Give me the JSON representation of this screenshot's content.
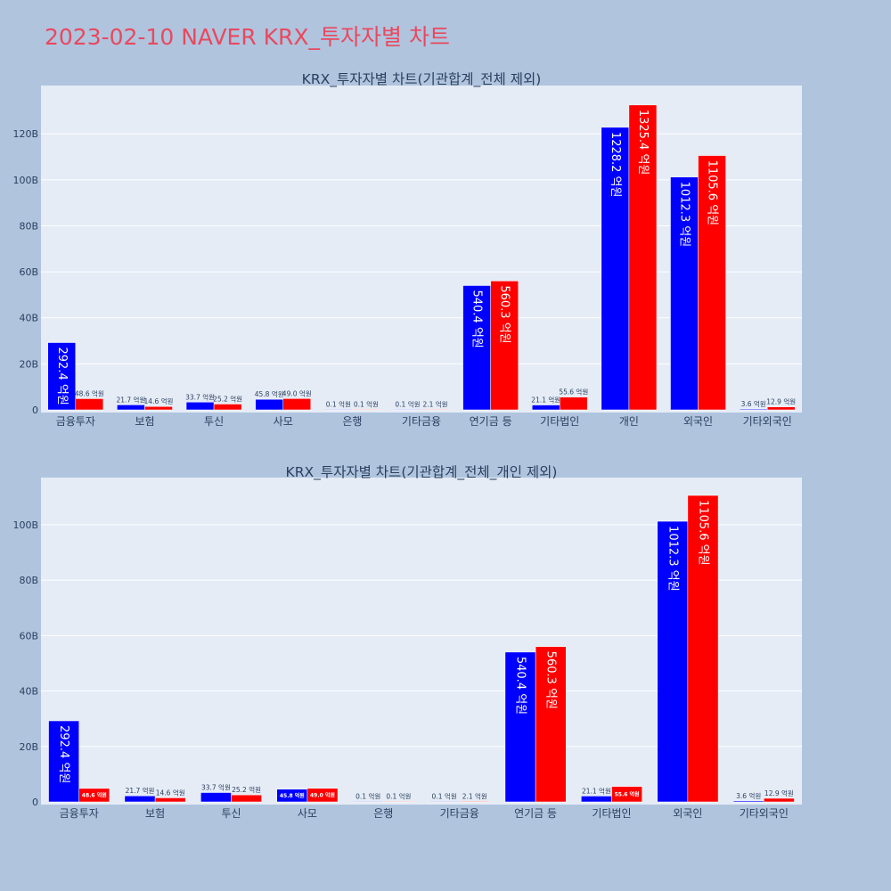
{
  "title": "2023-02-10 NAVER KRX_투자자별 차트",
  "colors": {
    "page_bg": "#b0c4de",
    "plot_bg": "#e5ecf6",
    "series_a": "#0000ff",
    "series_b": "#ff0000",
    "title": "#e8495f"
  },
  "chart_data": [
    {
      "type": "bar",
      "title": "KRX_투자자별 차트(기관합계_전체 제외)",
      "categories": [
        "금융투자",
        "보험",
        "투신",
        "사모",
        "은행",
        "기타금융",
        "연기금 등",
        "기타법인",
        "개인",
        "외국인",
        "기타외국인"
      ],
      "series": [
        {
          "values": [
            29.24,
            2.17,
            3.37,
            4.58,
            0.01,
            0.01,
            54.04,
            2.11,
            122.82,
            101.23,
            0.36
          ],
          "labels": [
            "292.4 억원",
            "21.7 억원",
            "33.7 억원",
            "45.8 억원",
            "0.1 억원",
            "0.1 억원",
            "540.4 억원",
            "21.1 억원",
            "1228.2 억원",
            "1012.3 억원",
            "3.6 억원"
          ]
        },
        {
          "values": [
            4.86,
            1.46,
            2.52,
            4.9,
            0.01,
            0.21,
            56.03,
            5.56,
            132.54,
            110.56,
            1.29
          ],
          "labels": [
            "48.6 억원",
            "14.6 억원",
            "25.2 억원",
            "49.0 억원",
            "0.1 억원",
            "2.1 억원",
            "560.3 억원",
            "55.6 억원",
            "1325.4 억원",
            "1105.6 억원",
            "12.9 억원"
          ]
        }
      ],
      "y_ticks": [
        "0",
        "20B",
        "40B",
        "60B",
        "80B",
        "100B",
        "120B"
      ],
      "ylim": [
        0,
        141
      ],
      "grid": true
    },
    {
      "type": "bar",
      "title": "KRX_투자자별 차트(기관합계_전체_개인 제외)",
      "categories": [
        "금융투자",
        "보험",
        "투신",
        "사모",
        "은행",
        "기타금융",
        "연기금 등",
        "기타법인",
        "외국인",
        "기타외국인"
      ],
      "series": [
        {
          "values": [
            29.24,
            2.17,
            3.37,
            4.58,
            0.01,
            0.01,
            54.04,
            2.11,
            101.23,
            0.36
          ],
          "labels": [
            "292.4 억원",
            "21.7 억원",
            "33.7 억원",
            "45.8 억원",
            "0.1 억원",
            "0.1 억원",
            "540.4 억원",
            "21.1 억원",
            "1012.3 억원",
            "3.6 억원"
          ]
        },
        {
          "values": [
            4.86,
            1.46,
            2.52,
            4.9,
            0.01,
            0.21,
            56.03,
            5.56,
            110.56,
            1.29
          ],
          "labels": [
            "48.6 억원",
            "14.6 억원",
            "25.2 억원",
            "49.0 억원",
            "0.1 억원",
            "2.1 억원",
            "560.3 억원",
            "55.6 억원",
            "1105.6 억원",
            "12.9 억원"
          ]
        }
      ],
      "y_ticks": [
        "0",
        "20B",
        "40B",
        "60B",
        "80B",
        "100B"
      ],
      "ylim": [
        0,
        117
      ],
      "grid": true
    }
  ]
}
